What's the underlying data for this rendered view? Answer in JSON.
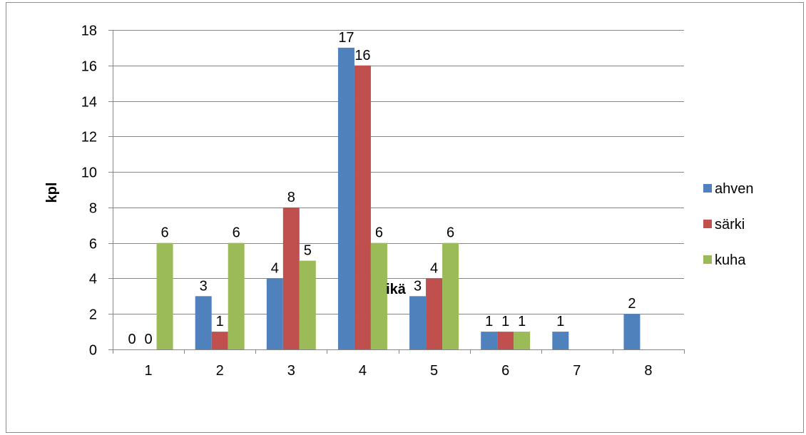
{
  "chart_data": {
    "type": "bar",
    "categories": [
      "1",
      "2",
      "3",
      "4",
      "5",
      "6",
      "7",
      "8"
    ],
    "series": [
      {
        "name": "ahven",
        "color": "#4F81BD",
        "values": [
          0,
          3,
          4,
          17,
          3,
          1,
          1,
          2
        ],
        "labels": [
          "0",
          "3",
          "4",
          "17",
          "3",
          "1",
          "1",
          "2"
        ]
      },
      {
        "name": "särki",
        "color": "#C0504D",
        "values": [
          0,
          1,
          8,
          16,
          4,
          1,
          null,
          null
        ],
        "labels": [
          "0",
          "1",
          "8",
          "16",
          "4",
          "1",
          null,
          null
        ]
      },
      {
        "name": "kuha",
        "color": "#9BBB59",
        "values": [
          6,
          6,
          5,
          6,
          6,
          1,
          null,
          null
        ],
        "labels": [
          "6",
          "6",
          "5",
          "6",
          "6",
          "1",
          null,
          null
        ]
      }
    ],
    "xlabel": "ikä",
    "ylabel": "kpl",
    "ylim": [
      0,
      18
    ],
    "yticks": [
      "0",
      "2",
      "4",
      "6",
      "8",
      "10",
      "12",
      "14",
      "16",
      "18"
    ],
    "grid": "horizontal",
    "legend_position": "right",
    "gridline_color": "#868686"
  }
}
